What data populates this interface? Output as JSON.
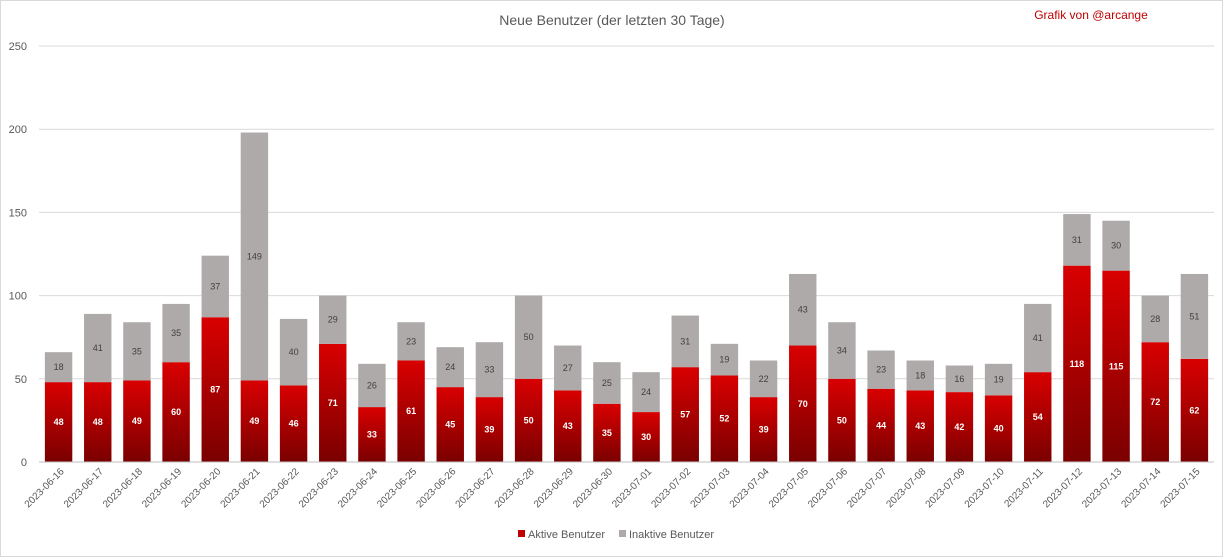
{
  "chart_data": {
    "type": "bar",
    "stacked": true,
    "title": "Neue Benutzer (der letzten 30 Tage)",
    "credit": "Grafik von @arcange",
    "categories": [
      "2023-06-16",
      "2023-06-17",
      "2023-06-18",
      "2023-06-19",
      "2023-06-20",
      "2023-06-21",
      "2023-06-22",
      "2023-06-23",
      "2023-06-24",
      "2023-06-25",
      "2023-06-26",
      "2023-06-27",
      "2023-06-28",
      "2023-06-29",
      "2023-06-30",
      "2023-07-01",
      "2023-07-02",
      "2023-07-03",
      "2023-07-04",
      "2023-07-05",
      "2023-07-06",
      "2023-07-07",
      "2023-07-08",
      "2023-07-09",
      "2023-07-10",
      "2023-07-11",
      "2023-07-12",
      "2023-07-13",
      "2023-07-14",
      "2023-07-15"
    ],
    "series": [
      {
        "name": "Aktive Benutzer",
        "color": "#c00000",
        "values": [
          48,
          48,
          49,
          60,
          87,
          49,
          46,
          71,
          33,
          61,
          45,
          39,
          50,
          43,
          35,
          30,
          57,
          52,
          39,
          70,
          50,
          44,
          43,
          42,
          40,
          54,
          118,
          115,
          72,
          62
        ]
      },
      {
        "name": "Inaktive Benutzer",
        "color": "#aeaaaa",
        "values": [
          18,
          41,
          35,
          35,
          37,
          149,
          40,
          29,
          26,
          23,
          24,
          33,
          50,
          27,
          25,
          24,
          31,
          19,
          22,
          43,
          34,
          23,
          18,
          16,
          19,
          41,
          31,
          30,
          28,
          51
        ]
      }
    ],
    "yticks": [
      0,
      50,
      100,
      150,
      200,
      250
    ],
    "ylim": [
      0,
      250
    ],
    "grid": true,
    "legend_position": "bottom"
  }
}
